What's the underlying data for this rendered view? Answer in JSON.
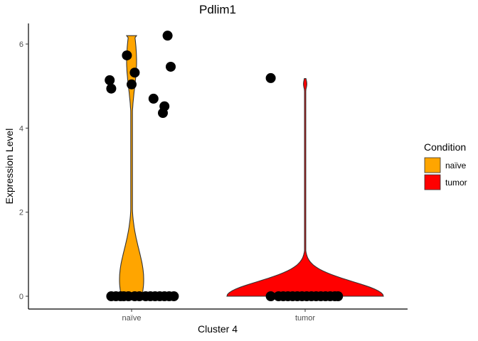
{
  "chart_data": {
    "type": "violin",
    "title": "Pdlim1",
    "xlabel": "Cluster 4",
    "ylabel": "Expression Level",
    "categories": [
      "naïve",
      "tumor"
    ],
    "ylim": [
      -0.3,
      6.5
    ],
    "yticks": [
      0,
      2,
      4,
      6
    ],
    "grid": false,
    "legend": {
      "title": "Condition",
      "placement": "right",
      "entries": [
        {
          "label": "naïve",
          "color": "#FFA500"
        },
        {
          "label": "tumor",
          "color": "#FF0000"
        }
      ]
    },
    "series": [
      {
        "category": "naïve",
        "color": "#FFA500",
        "violin_max": 6.2,
        "points": [
          {
            "x": -0.28,
            "y": 5.14
          },
          {
            "x": -0.26,
            "y": 4.94
          },
          {
            "x": -0.06,
            "y": 5.73
          },
          {
            "x": 0.0,
            "y": 5.04
          },
          {
            "x": 0.04,
            "y": 5.32
          },
          {
            "x": 0.28,
            "y": 4.7
          },
          {
            "x": 0.4,
            "y": 4.36
          },
          {
            "x": 0.42,
            "y": 4.52
          },
          {
            "x": 0.46,
            "y": 6.2
          },
          {
            "x": 0.5,
            "y": 5.46
          },
          {
            "x": -0.26,
            "y": 0
          },
          {
            "x": -0.2,
            "y": 0
          },
          {
            "x": -0.14,
            "y": 0
          },
          {
            "x": -0.1,
            "y": 0
          },
          {
            "x": -0.04,
            "y": 0
          },
          {
            "x": 0.04,
            "y": 0
          },
          {
            "x": 0.1,
            "y": 0
          },
          {
            "x": 0.18,
            "y": 0
          },
          {
            "x": 0.24,
            "y": 0
          },
          {
            "x": 0.3,
            "y": 0
          },
          {
            "x": 0.36,
            "y": 0
          },
          {
            "x": 0.42,
            "y": 0
          },
          {
            "x": 0.48,
            "y": 0
          },
          {
            "x": 0.54,
            "y": 0
          }
        ]
      },
      {
        "category": "tumor",
        "color": "#FF0000",
        "violin_max": 5.18,
        "points": [
          {
            "x": -0.44,
            "y": 5.19
          },
          {
            "x": -0.44,
            "y": 0
          },
          {
            "x": -0.34,
            "y": 0
          },
          {
            "x": -0.28,
            "y": 0
          },
          {
            "x": -0.22,
            "y": 0
          },
          {
            "x": -0.16,
            "y": 0
          },
          {
            "x": -0.1,
            "y": 0
          },
          {
            "x": -0.04,
            "y": 0
          },
          {
            "x": 0.02,
            "y": 0
          },
          {
            "x": 0.08,
            "y": 0
          },
          {
            "x": 0.14,
            "y": 0
          },
          {
            "x": 0.2,
            "y": 0
          },
          {
            "x": 0.26,
            "y": 0
          },
          {
            "x": 0.32,
            "y": 0
          },
          {
            "x": 0.38,
            "y": 0
          },
          {
            "x": 0.42,
            "y": 0
          }
        ]
      }
    ]
  }
}
